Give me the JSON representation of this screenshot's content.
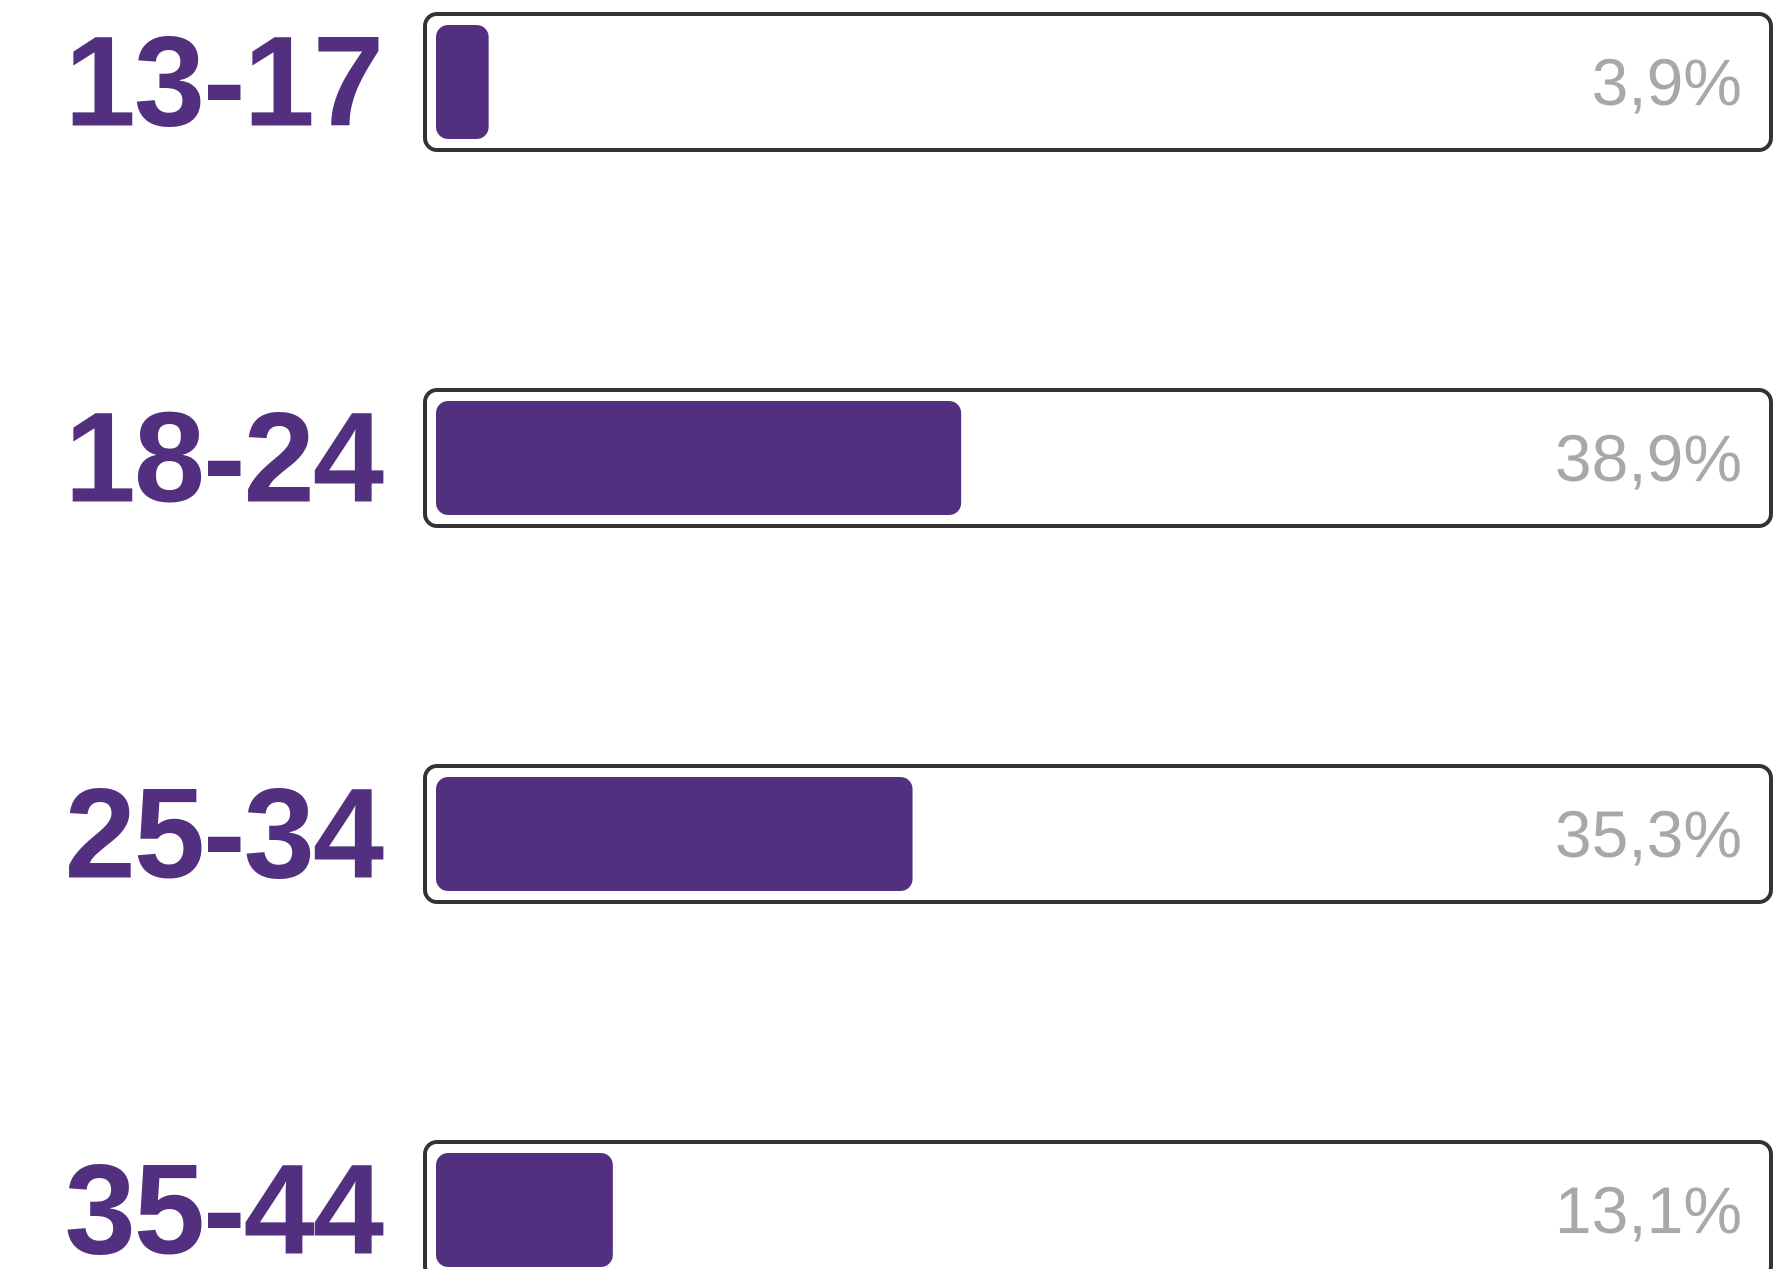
{
  "chart_data": {
    "type": "hbar",
    "categories": [
      "13-17",
      "18-24",
      "25-34",
      "35-44"
    ],
    "values": [
      3.9,
      38.9,
      35.3,
      13.1
    ],
    "value_labels": [
      "3,9%",
      "38,9%",
      "35,3%",
      "13,1%"
    ],
    "color": "#52307f",
    "xlim": [
      0,
      100
    ]
  }
}
